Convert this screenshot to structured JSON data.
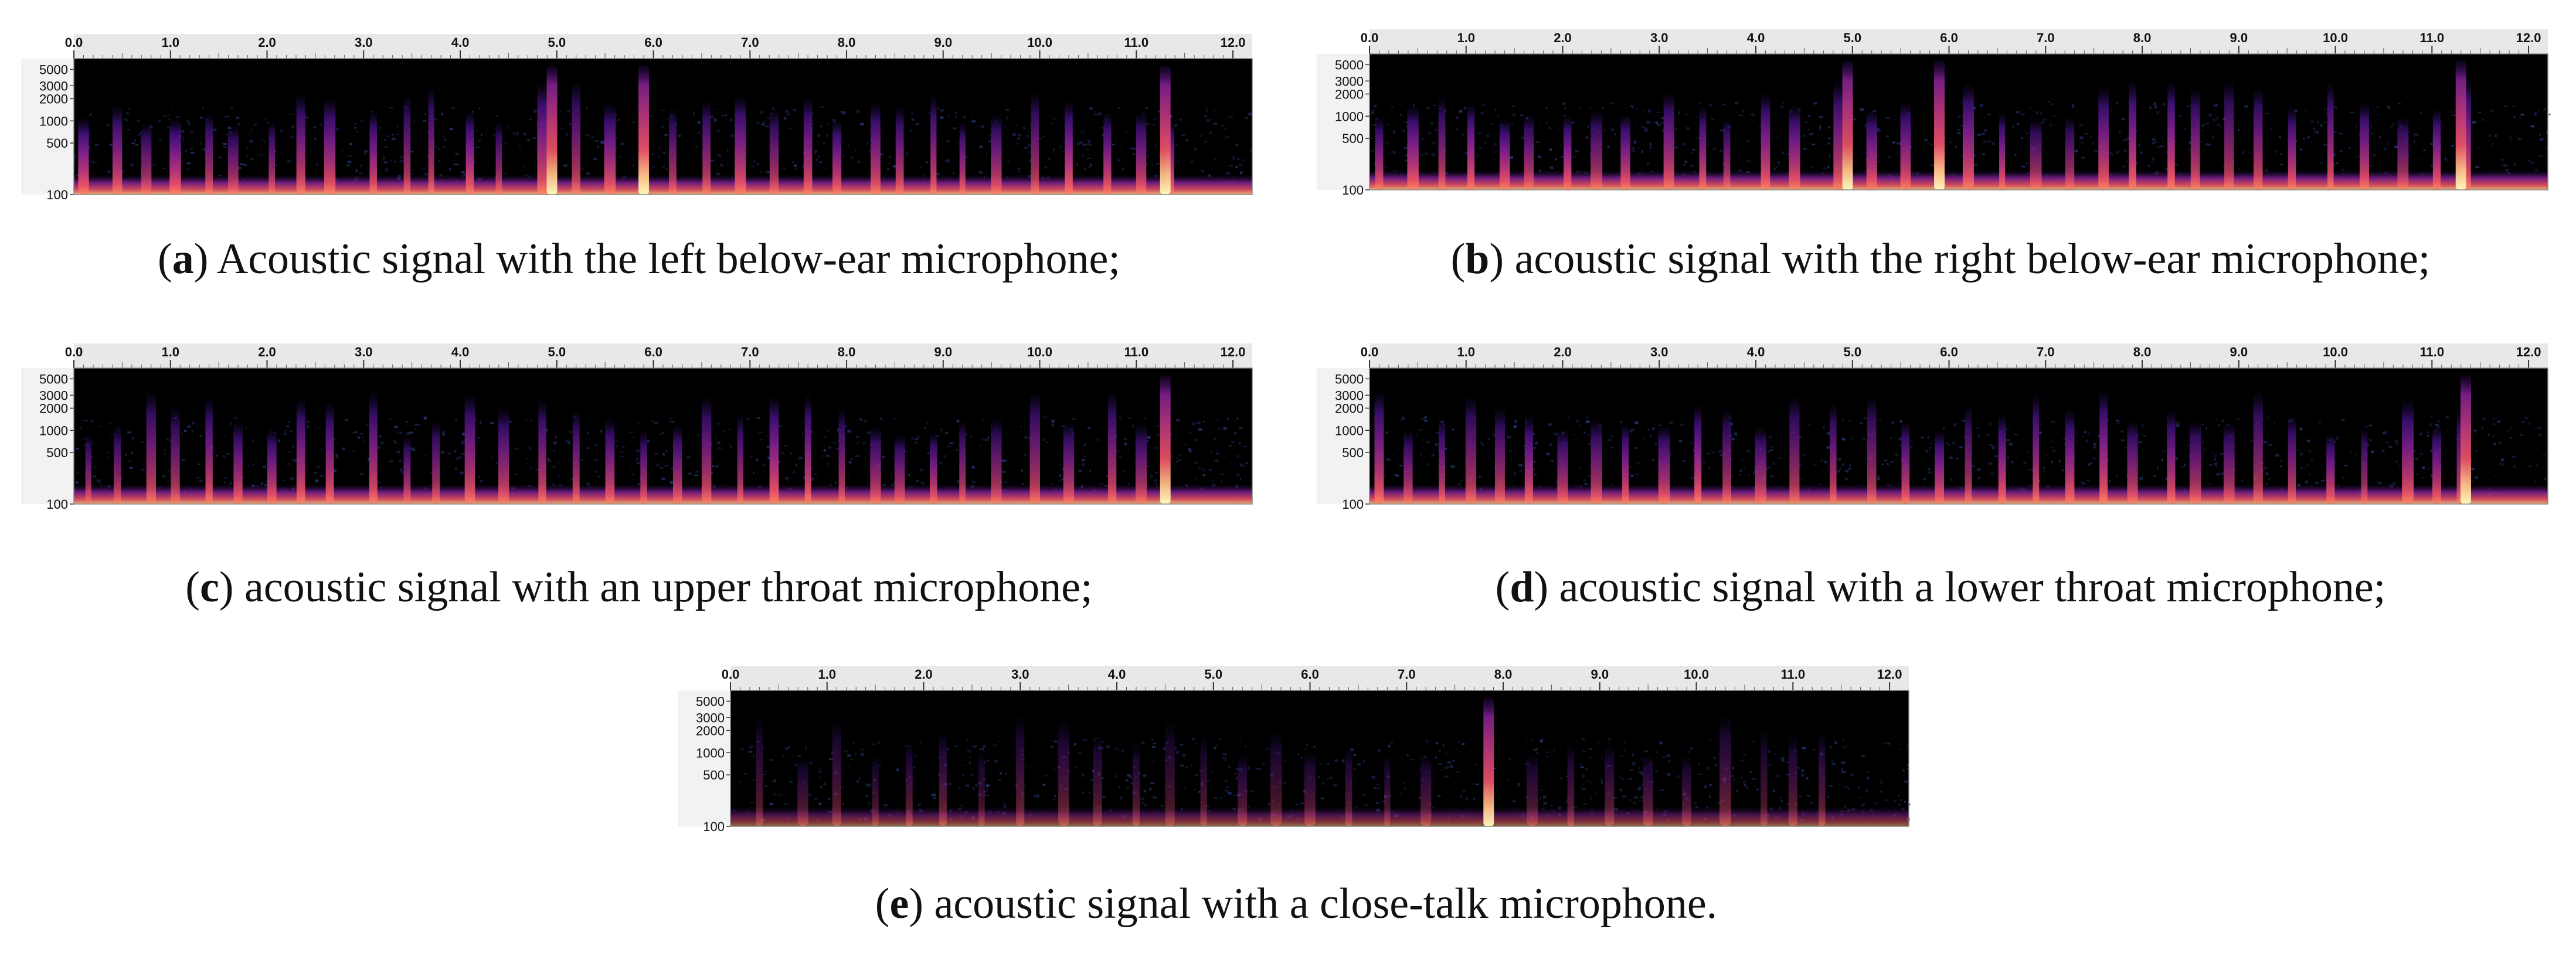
{
  "chart_data": [
    {
      "panel": "a",
      "type": "heatmap",
      "caption_letter": "a",
      "caption_prefix": "(",
      "caption_rest": ") Acoustic signal with  the left below-ear microphone;",
      "x_ticks": [
        "0.0",
        "1.0",
        "2.0",
        "3.0",
        "4.0",
        "5.0",
        "6.0",
        "7.0",
        "8.0",
        "9.0",
        "10.0",
        "11.0",
        "12.0"
      ],
      "y_ticks": [
        "5000",
        "3000",
        "2000",
        "1000",
        "500",
        "100"
      ],
      "xlim": [
        0,
        12.2
      ],
      "y_scale": "log-like",
      "burst_times": [
        0.1,
        0.45,
        0.75,
        1.05,
        1.4,
        1.65,
        2.05,
        2.35,
        2.65,
        3.1,
        3.45,
        3.7,
        4.1,
        4.4,
        4.85,
        5.2,
        5.55,
        5.9,
        6.2,
        6.55,
        6.9,
        7.25,
        7.6,
        7.9,
        8.3,
        8.55,
        8.9,
        9.2,
        9.55,
        9.95,
        10.3,
        10.7,
        11.05,
        11.35
      ],
      "strong_bursts": [
        4.95,
        5.9,
        11.3
      ],
      "colormap": [
        "#000000",
        "#1b0c41",
        "#3b0f70",
        "#7a1f8a",
        "#b63679",
        "#e65164",
        "#fb8861",
        "#fec287",
        "#fcfdbf"
      ]
    },
    {
      "panel": "b",
      "type": "heatmap",
      "caption_letter": "b",
      "caption_prefix": "(",
      "caption_rest": ") acoustic signal with  the right below-ear microphone;",
      "x_ticks": [
        "0.0",
        "1.0",
        "2.0",
        "3.0",
        "4.0",
        "5.0",
        "6.0",
        "7.0",
        "8.0",
        "9.0",
        "10.0",
        "11.0",
        "12.0"
      ],
      "y_ticks": [
        "5000",
        "3000",
        "2000",
        "1000",
        "500",
        "100"
      ],
      "xlim": [
        0,
        12.2
      ],
      "y_scale": "log-like",
      "burst_times": [
        0.1,
        0.45,
        0.75,
        1.05,
        1.4,
        1.65,
        2.05,
        2.35,
        2.65,
        3.1,
        3.45,
        3.7,
        4.1,
        4.4,
        4.85,
        5.2,
        5.55,
        5.9,
        6.2,
        6.55,
        6.9,
        7.25,
        7.6,
        7.9,
        8.3,
        8.55,
        8.9,
        9.2,
        9.55,
        9.95,
        10.3,
        10.7,
        11.05,
        11.35
      ],
      "strong_bursts": [
        4.95,
        5.9,
        11.3
      ],
      "colormap": [
        "#000000",
        "#1b0c41",
        "#3b0f70",
        "#7a1f8a",
        "#b63679",
        "#e65164",
        "#fb8861",
        "#fec287",
        "#fcfdbf"
      ]
    },
    {
      "panel": "c",
      "type": "heatmap",
      "caption_letter": "c",
      "caption_prefix": "(",
      "caption_rest": ") acoustic signal with an upper throat microphone;",
      "x_ticks": [
        "0.0",
        "1.0",
        "2.0",
        "3.0",
        "4.0",
        "5.0",
        "6.0",
        "7.0",
        "8.0",
        "9.0",
        "10.0",
        "11.0",
        "12.0"
      ],
      "y_ticks": [
        "5000",
        "3000",
        "2000",
        "1000",
        "500",
        "100"
      ],
      "xlim": [
        0,
        12.2
      ],
      "y_scale": "log-like",
      "burst_times": [
        0.15,
        0.45,
        0.8,
        1.05,
        1.4,
        1.7,
        2.05,
        2.35,
        2.65,
        3.1,
        3.45,
        3.75,
        4.1,
        4.45,
        4.85,
        5.2,
        5.55,
        5.9,
        6.25,
        6.55,
        6.9,
        7.25,
        7.6,
        7.95,
        8.3,
        8.55,
        8.9,
        9.2,
        9.55,
        9.95,
        10.3,
        10.75,
        11.05
      ],
      "strong_bursts": [
        11.3
      ],
      "colormap": [
        "#000000",
        "#1b0c41",
        "#3b0f70",
        "#7a1f8a",
        "#b63679",
        "#e65164",
        "#fb8861",
        "#fec287",
        "#fcfdbf"
      ]
    },
    {
      "panel": "d",
      "type": "heatmap",
      "caption_letter": "d",
      "caption_prefix": "(",
      "caption_rest": ") acoustic signal with a lower throat microphone;",
      "x_ticks": [
        "0.0",
        "1.0",
        "2.0",
        "3.0",
        "4.0",
        "5.0",
        "6.0",
        "7.0",
        "8.0",
        "9.0",
        "10.0",
        "11.0",
        "12.0"
      ],
      "y_ticks": [
        "5000",
        "3000",
        "2000",
        "1000",
        "500",
        "100"
      ],
      "xlim": [
        0,
        12.2
      ],
      "y_scale": "log-like",
      "burst_times": [
        0.1,
        0.4,
        0.75,
        1.05,
        1.35,
        1.65,
        2.0,
        2.35,
        2.65,
        3.05,
        3.4,
        3.7,
        4.05,
        4.4,
        4.8,
        5.2,
        5.55,
        5.9,
        6.2,
        6.55,
        6.9,
        7.25,
        7.6,
        7.9,
        8.3,
        8.55,
        8.9,
        9.2,
        9.55,
        9.95,
        10.3,
        10.75,
        11.05,
        11.3
      ],
      "strong_bursts": [
        11.35
      ],
      "colormap": [
        "#000000",
        "#1b0c41",
        "#3b0f70",
        "#7a1f8a",
        "#b63679",
        "#e65164",
        "#fb8861",
        "#fec287",
        "#fcfdbf"
      ]
    },
    {
      "panel": "e",
      "type": "heatmap",
      "caption_letter": "e",
      "caption_prefix": "(",
      "caption_rest": ") acoustic signal with  a close-talk microphone.",
      "x_ticks": [
        "0.0",
        "1.0",
        "2.0",
        "3.0",
        "4.0",
        "5.0",
        "6.0",
        "7.0",
        "8.0",
        "9.0",
        "10.0",
        "11.0",
        "12.0"
      ],
      "y_ticks": [
        "5000",
        "3000",
        "2000",
        "1000",
        "500",
        "100"
      ],
      "xlim": [
        0,
        12.2
      ],
      "y_scale": "log-like",
      "burst_times": [
        0.3,
        0.75,
        1.1,
        1.5,
        1.85,
        2.2,
        2.6,
        3.0,
        3.45,
        3.8,
        4.2,
        4.55,
        4.9,
        5.3,
        5.65,
        6.0,
        6.4,
        6.8,
        7.2,
        8.3,
        8.7,
        9.1,
        9.5,
        9.9,
        10.3,
        10.7,
        11.0,
        11.3
      ],
      "strong_bursts": [
        7.85
      ],
      "colormap": [
        "#000000",
        "#1b0c41",
        "#3b0f70",
        "#7a1f8a",
        "#b63679",
        "#e65164",
        "#fb8861",
        "#fec287",
        "#fcfdbf"
      ]
    }
  ]
}
